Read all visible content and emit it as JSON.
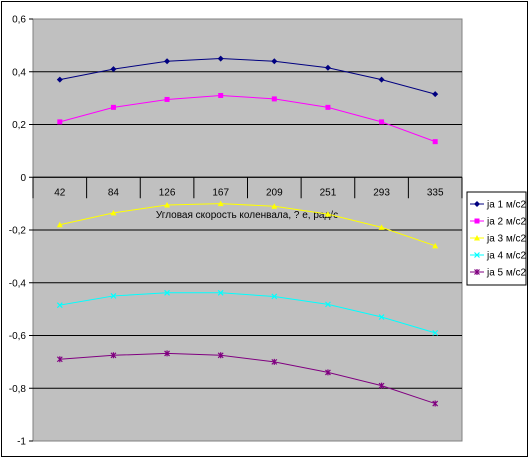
{
  "chart_data": {
    "type": "line",
    "title": "",
    "xlabel": "Угловая скорость коленвала, ? е, рад/с",
    "ylabel": "",
    "categories": [
      "42",
      "84",
      "126",
      "167",
      "209",
      "251",
      "293",
      "335"
    ],
    "ylim": [
      -1,
      0.6
    ],
    "yticks": [
      0.6,
      0.4,
      0.2,
      0,
      -0.2,
      -0.4,
      -0.6,
      -0.8,
      -1
    ],
    "ytick_labels": [
      "0,6",
      "0,4",
      "0,2",
      "0",
      "-0,2",
      "-0,4",
      "-0,6",
      "-0,8",
      "-1"
    ],
    "grid": true,
    "legend_position": "right",
    "series": [
      {
        "name": "ja 1 м/с2",
        "color": "#000080",
        "marker": "diamond",
        "values": [
          0.37,
          0.41,
          0.44,
          0.45,
          0.44,
          0.415,
          0.37,
          0.315
        ]
      },
      {
        "name": "ja 2 м/с2",
        "color": "#ff00ff",
        "marker": "square",
        "values": [
          0.21,
          0.265,
          0.295,
          0.31,
          0.297,
          0.265,
          0.21,
          0.135
        ]
      },
      {
        "name": "ja 3 м/с2",
        "color": "#ffff00",
        "marker": "triangle",
        "values": [
          -0.18,
          -0.135,
          -0.105,
          -0.1,
          -0.11,
          -0.14,
          -0.19,
          -0.26
        ]
      },
      {
        "name": "ja 4 м/с2",
        "color": "#00ffff",
        "marker": "x",
        "values": [
          -0.485,
          -0.45,
          -0.438,
          -0.438,
          -0.452,
          -0.482,
          -0.53,
          -0.59
        ]
      },
      {
        "name": "ja 5 м/с2",
        "color": "#800080",
        "marker": "star",
        "values": [
          -0.69,
          -0.675,
          -0.668,
          -0.675,
          -0.7,
          -0.74,
          -0.79,
          -0.858
        ]
      }
    ]
  }
}
